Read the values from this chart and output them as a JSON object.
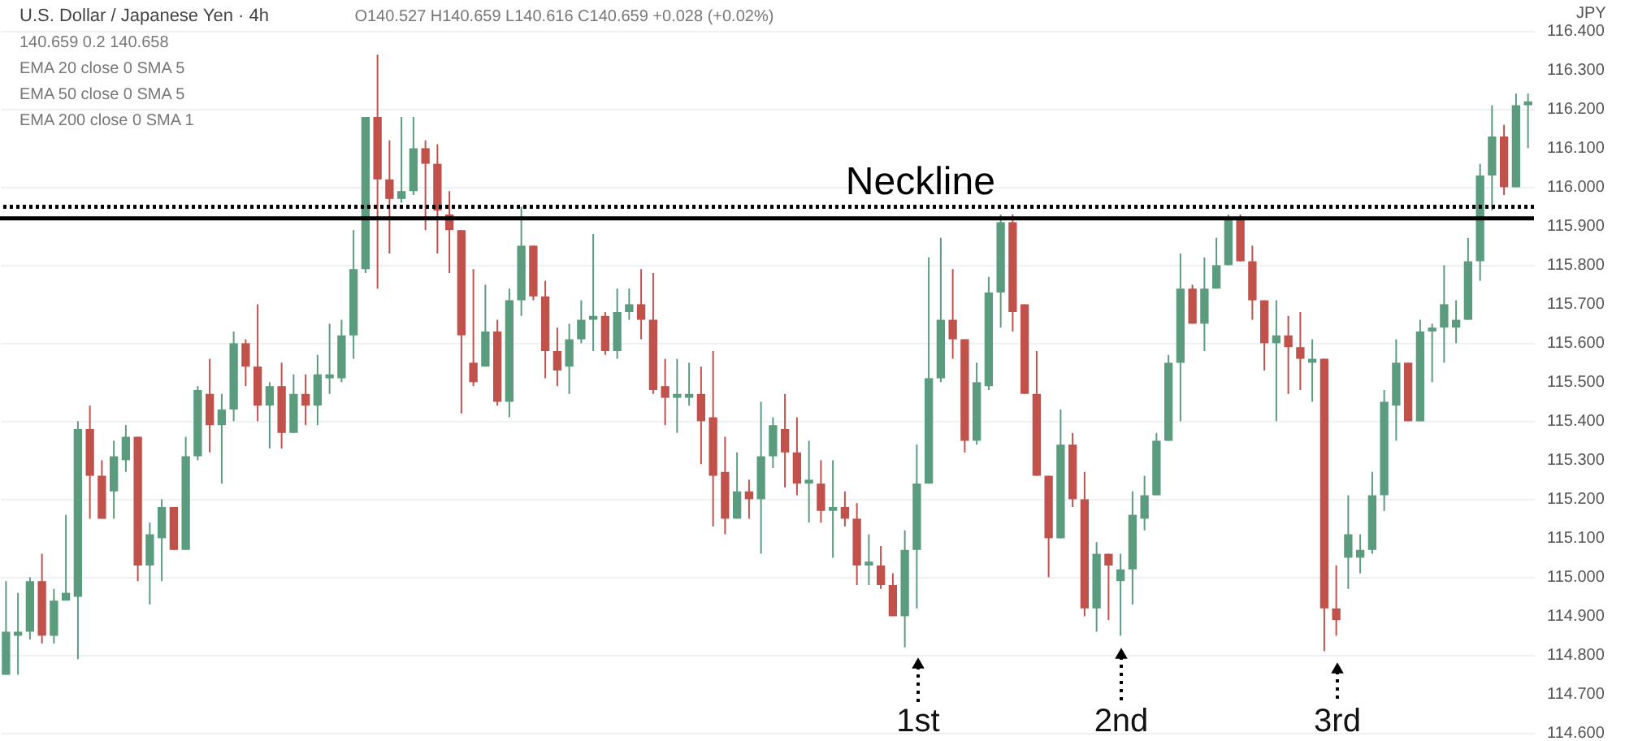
{
  "chart_data": {
    "type": "candlestick",
    "title": "U.S. Dollar / Japanese Yen · 4h",
    "ylabel": "JPY",
    "annotations": [
      "O140.527 H140.659 L140.616 C140.659 +0.028 (+0.02%)",
      "140.659  0.2  140.658",
      "EMA 20 close 0 SMA 5",
      "EMA 50 close 0 SMA 5",
      "EMA 200 close 0 SMA 1",
      "1st",
      "2nd",
      "3rd"
    ],
    "categories": [
      null,
      null,
      null,
      null,
      null,
      null,
      null,
      null,
      null,
      null,
      null,
      null,
      null,
      null,
      null,
      null,
      null,
      null,
      null,
      null,
      null,
      null,
      null,
      null,
      null,
      null,
      null,
      null,
      null,
      null,
      null,
      null,
      null,
      null,
      null,
      null,
      null,
      null,
      null,
      null,
      null,
      null,
      null,
      null,
      null,
      null,
      null,
      null,
      null,
      null,
      null,
      null,
      null,
      null,
      null,
      null,
      null,
      null,
      null,
      null,
      null,
      null,
      null,
      null,
      null,
      null,
      null,
      null,
      null,
      null,
      null,
      null,
      null,
      null,
      null,
      null,
      null,
      null,
      null,
      null,
      null,
      null,
      null,
      null,
      null,
      null,
      null,
      null,
      null,
      null,
      null,
      null,
      null,
      null,
      null,
      null,
      null,
      null,
      null,
      null,
      null,
      null,
      null,
      null,
      null,
      null,
      null,
      null,
      null,
      null,
      null,
      null,
      null,
      null,
      null,
      null,
      null,
      null,
      null,
      null,
      null,
      null,
      null,
      null,
      null,
      null,
      null,
      null
    ],
    "ohlc": [
      [
        114.75,
        114.99,
        114.75,
        114.86
      ],
      [
        114.85,
        114.96,
        114.75,
        114.86
      ],
      [
        114.86,
        115.0,
        114.84,
        114.99
      ],
      [
        114.99,
        115.06,
        114.83,
        114.85
      ],
      [
        114.85,
        114.97,
        114.83,
        114.94
      ],
      [
        114.94,
        115.16,
        114.94,
        114.96
      ],
      [
        114.95,
        115.4,
        114.79,
        115.38
      ],
      [
        115.38,
        115.44,
        115.15,
        115.26
      ],
      [
        115.26,
        115.3,
        115.15,
        115.15
      ],
      [
        115.22,
        115.35,
        115.15,
        115.31
      ],
      [
        115.3,
        115.39,
        115.27,
        115.36
      ],
      [
        115.36,
        115.36,
        114.99,
        115.03
      ],
      [
        115.03,
        115.14,
        114.93,
        115.11
      ],
      [
        115.1,
        115.2,
        114.99,
        115.18
      ],
      [
        115.18,
        115.18,
        115.07,
        115.07
      ],
      [
        115.07,
        115.36,
        115.07,
        115.31
      ],
      [
        115.31,
        115.49,
        115.3,
        115.48
      ],
      [
        115.47,
        115.56,
        115.32,
        115.39
      ],
      [
        115.39,
        115.47,
        115.24,
        115.43
      ],
      [
        115.43,
        115.63,
        115.4,
        115.6
      ],
      [
        115.6,
        115.61,
        115.49,
        115.54
      ],
      [
        115.54,
        115.7,
        115.4,
        115.44
      ],
      [
        115.44,
        115.5,
        115.33,
        115.49
      ],
      [
        115.49,
        115.55,
        115.33,
        115.37
      ],
      [
        115.37,
        115.52,
        115.37,
        115.47
      ],
      [
        115.47,
        115.52,
        115.39,
        115.44
      ],
      [
        115.44,
        115.57,
        115.39,
        115.52
      ],
      [
        115.51,
        115.65,
        115.47,
        115.52
      ],
      [
        115.51,
        115.66,
        115.5,
        115.62
      ],
      [
        115.62,
        115.89,
        115.56,
        115.79
      ],
      [
        115.79,
        116.18,
        115.78,
        116.18
      ],
      [
        116.18,
        116.34,
        115.74,
        116.02
      ],
      [
        116.02,
        116.12,
        115.83,
        115.97
      ],
      [
        115.97,
        116.18,
        115.96,
        115.99
      ],
      [
        115.99,
        116.18,
        115.98,
        116.1
      ],
      [
        116.1,
        116.12,
        115.89,
        116.06
      ],
      [
        116.06,
        116.11,
        115.83,
        115.94
      ],
      [
        115.93,
        115.99,
        115.78,
        115.89
      ],
      [
        115.89,
        115.89,
        115.42,
        115.62
      ],
      [
        115.55,
        115.79,
        115.49,
        115.5
      ],
      [
        115.54,
        115.75,
        115.54,
        115.63
      ],
      [
        115.63,
        115.66,
        115.44,
        115.45
      ],
      [
        115.45,
        115.74,
        115.41,
        115.71
      ],
      [
        115.71,
        115.95,
        115.67,
        115.85
      ],
      [
        115.85,
        115.85,
        115.71,
        115.72
      ],
      [
        115.72,
        115.76,
        115.51,
        115.58
      ],
      [
        115.58,
        115.64,
        115.49,
        115.53
      ],
      [
        115.54,
        115.65,
        115.47,
        115.61
      ],
      [
        115.61,
        115.71,
        115.6,
        115.66
      ],
      [
        115.66,
        115.88,
        115.58,
        115.67
      ],
      [
        115.67,
        115.68,
        115.57,
        115.58
      ],
      [
        115.58,
        115.74,
        115.56,
        115.68
      ],
      [
        115.68,
        115.74,
        115.66,
        115.7
      ],
      [
        115.7,
        115.79,
        115.61,
        115.66
      ],
      [
        115.66,
        115.78,
        115.47,
        115.48
      ],
      [
        115.49,
        115.56,
        115.39,
        115.46
      ],
      [
        115.46,
        115.56,
        115.37,
        115.47
      ],
      [
        115.46,
        115.55,
        115.44,
        115.47
      ],
      [
        115.47,
        115.54,
        115.29,
        115.4
      ],
      [
        115.41,
        115.58,
        115.13,
        115.26
      ],
      [
        115.27,
        115.36,
        115.11,
        115.15
      ],
      [
        115.15,
        115.32,
        115.15,
        115.22
      ],
      [
        115.22,
        115.25,
        115.15,
        115.2
      ],
      [
        115.2,
        115.45,
        115.06,
        115.31
      ],
      [
        115.31,
        115.41,
        115.28,
        115.39
      ],
      [
        115.38,
        115.47,
        115.23,
        115.32
      ],
      [
        115.32,
        115.41,
        115.21,
        115.24
      ],
      [
        115.24,
        115.35,
        115.14,
        115.25
      ],
      [
        115.24,
        115.3,
        115.14,
        115.17
      ],
      [
        115.17,
        115.3,
        115.05,
        115.18
      ],
      [
        115.18,
        115.22,
        115.13,
        115.15
      ],
      [
        115.15,
        115.19,
        114.98,
        115.03
      ],
      [
        115.03,
        115.11,
        114.98,
        115.04
      ],
      [
        115.03,
        115.08,
        114.97,
        114.98
      ],
      [
        114.98,
        115.01,
        114.9,
        114.9
      ],
      [
        114.9,
        115.12,
        114.82,
        115.07
      ],
      [
        115.07,
        115.34,
        114.92,
        115.24
      ],
      [
        115.24,
        115.82,
        115.24,
        115.51
      ],
      [
        115.51,
        115.87,
        115.5,
        115.66
      ],
      [
        115.66,
        115.79,
        115.56,
        115.61
      ],
      [
        115.61,
        115.61,
        115.32,
        115.35
      ],
      [
        115.35,
        115.55,
        115.34,
        115.5
      ],
      [
        115.49,
        115.77,
        115.48,
        115.73
      ],
      [
        115.73,
        115.93,
        115.64,
        115.91
      ],
      [
        115.91,
        115.93,
        115.63,
        115.68
      ],
      [
        115.7,
        115.7,
        115.47,
        115.47
      ],
      [
        115.47,
        115.58,
        115.26,
        115.26
      ],
      [
        115.26,
        115.26,
        115.0,
        115.1
      ],
      [
        115.1,
        115.43,
        115.1,
        115.34
      ],
      [
        115.34,
        115.37,
        115.18,
        115.2
      ],
      [
        115.2,
        115.27,
        114.9,
        114.92
      ],
      [
        114.92,
        115.09,
        114.86,
        115.06
      ],
      [
        115.06,
        115.06,
        114.89,
        115.03
      ],
      [
        114.99,
        115.06,
        114.85,
        115.02
      ],
      [
        115.02,
        115.22,
        114.93,
        115.16
      ],
      [
        115.15,
        115.26,
        115.12,
        115.21
      ],
      [
        115.21,
        115.37,
        115.21,
        115.35
      ],
      [
        115.35,
        115.57,
        115.35,
        115.55
      ],
      [
        115.55,
        115.83,
        115.4,
        115.74
      ],
      [
        115.74,
        115.75,
        115.65,
        115.65
      ],
      [
        115.65,
        115.82,
        115.58,
        115.74
      ],
      [
        115.74,
        115.87,
        115.74,
        115.8
      ],
      [
        115.8,
        115.93,
        115.8,
        115.92
      ],
      [
        115.92,
        115.93,
        115.81,
        115.81
      ],
      [
        115.81,
        115.85,
        115.66,
        115.71
      ],
      [
        115.71,
        115.71,
        115.53,
        115.6
      ],
      [
        115.6,
        115.71,
        115.4,
        115.62
      ],
      [
        115.62,
        115.67,
        115.47,
        115.59
      ],
      [
        115.59,
        115.68,
        115.48,
        115.56
      ],
      [
        115.55,
        115.61,
        115.45,
        115.56
      ],
      [
        115.56,
        115.56,
        114.81,
        114.92
      ],
      [
        114.92,
        115.03,
        114.85,
        114.89
      ],
      [
        115.05,
        115.21,
        114.97,
        115.11
      ],
      [
        115.05,
        115.11,
        115.01,
        115.07
      ],
      [
        115.07,
        115.27,
        115.06,
        115.21
      ],
      [
        115.21,
        115.48,
        115.17,
        115.45
      ],
      [
        115.44,
        115.61,
        115.35,
        115.55
      ],
      [
        115.55,
        115.55,
        115.4,
        115.4
      ],
      [
        115.4,
        115.66,
        115.4,
        115.63
      ],
      [
        115.63,
        115.65,
        115.5,
        115.64
      ],
      [
        115.64,
        115.8,
        115.55,
        115.7
      ],
      [
        115.64,
        115.71,
        115.6,
        115.66
      ],
      [
        115.66,
        115.87,
        115.66,
        115.81
      ],
      [
        115.81,
        116.06,
        115.76,
        116.03
      ],
      [
        116.03,
        116.21,
        115.94,
        116.13
      ],
      [
        116.13,
        116.16,
        115.98,
        116.0
      ],
      [
        116.0,
        116.24,
        116.0,
        116.21
      ],
      [
        116.21,
        116.24,
        116.1,
        116.22
      ]
    ],
    "colors": [
      "#5b9c7f",
      "#5b9c7f",
      "#5b9c7f",
      "#c0524b",
      "#5b9c7f",
      "#5b9c7f",
      "#5b9c7f",
      "#c0524b",
      "#c0524b",
      "#5b9c7f",
      "#5b9c7f",
      "#c0524b",
      "#5b9c7f",
      "#5b9c7f",
      "#c0524b",
      "#5b9c7f",
      "#5b9c7f",
      "#c0524b",
      "#5b9c7f",
      "#5b9c7f",
      "#c0524b",
      "#c0524b",
      "#5b9c7f",
      "#c0524b",
      "#5b9c7f",
      "#c0524b",
      "#5b9c7f",
      "#5b9c7f",
      "#5b9c7f",
      "#5b9c7f",
      "#5b9c7f",
      "#c0524b",
      "#c0524b",
      "#5b9c7f",
      "#5b9c7f",
      "#c0524b",
      "#c0524b",
      "#c0524b",
      "#c0524b",
      "#c0524b",
      "#5b9c7f",
      "#c0524b",
      "#5b9c7f",
      "#5b9c7f",
      "#c0524b",
      "#c0524b",
      "#c0524b",
      "#5b9c7f",
      "#5b9c7f",
      "#5b9c7f",
      "#c0524b",
      "#5b9c7f",
      "#5b9c7f",
      "#c0524b",
      "#c0524b",
      "#c0524b",
      "#5b9c7f",
      "#5b9c7f",
      "#c0524b",
      "#c0524b",
      "#c0524b",
      "#5b9c7f",
      "#c0524b",
      "#5b9c7f",
      "#5b9c7f",
      "#c0524b",
      "#c0524b",
      "#5b9c7f",
      "#c0524b",
      "#5b9c7f",
      "#c0524b",
      "#c0524b",
      "#5b9c7f",
      "#c0524b",
      "#c0524b",
      "#5b9c7f",
      "#5b9c7f",
      "#5b9c7f",
      "#5b9c7f",
      "#c0524b",
      "#c0524b",
      "#5b9c7f",
      "#5b9c7f",
      "#5b9c7f",
      "#c0524b",
      "#c0524b",
      "#c0524b",
      "#c0524b",
      "#5b9c7f",
      "#c0524b",
      "#c0524b",
      "#5b9c7f",
      "#c0524b",
      "#5b9c7f",
      "#5b9c7f",
      "#5b9c7f",
      "#5b9c7f",
      "#5b9c7f",
      "#5b9c7f",
      "#c0524b",
      "#5b9c7f",
      "#5b9c7f",
      "#5b9c7f",
      "#c0524b",
      "#c0524b",
      "#c0524b",
      "#5b9c7f",
      "#c0524b",
      "#c0524b",
      "#5b9c7f",
      "#c0524b",
      "#c0524b",
      "#5b9c7f",
      "#5b9c7f",
      "#5b9c7f",
      "#5b9c7f",
      "#5b9c7f",
      "#c0524b",
      "#5b9c7f",
      "#5b9c7f",
      "#5b9c7f",
      "#5b9c7f",
      "#5b9c7f",
      "#5b9c7f",
      "#5b9c7f",
      "#c0524b",
      "#5b9c7f",
      "#5b9c7f"
    ],
    "ylim": [
      114.58,
      116.48
    ],
    "yticks": [
      {
        "value": 114.6,
        "label": "114.600"
      },
      {
        "value": 114.7,
        "label": "114.700"
      },
      {
        "value": 114.8,
        "label": "114.800"
      },
      {
        "value": 114.9,
        "label": "114.900"
      },
      {
        "value": 115.0,
        "label": "115.000"
      },
      {
        "value": 115.1,
        "label": "115.100"
      },
      {
        "value": 115.2,
        "label": "115.200"
      },
      {
        "value": 115.3,
        "label": "115.300"
      },
      {
        "value": 115.4,
        "label": "115.400"
      },
      {
        "value": 115.5,
        "label": "115.500"
      },
      {
        "value": 115.6,
        "label": "115.600"
      },
      {
        "value": 115.7,
        "label": "115.700"
      },
      {
        "value": 115.8,
        "label": "115.800"
      },
      {
        "value": 115.9,
        "label": "115.900"
      },
      {
        "value": 116.0,
        "label": "116.000"
      },
      {
        "value": 116.1,
        "label": "116.100"
      },
      {
        "value": 116.2,
        "label": "116.200"
      },
      {
        "value": 116.3,
        "label": "116.300"
      },
      {
        "value": 116.4,
        "label": "116.400"
      }
    ],
    "ref_lines": [
      {
        "axis": "y",
        "value": 115.92,
        "label": "Neckline",
        "color": "#000000"
      },
      {
        "axis": "y",
        "value": 115.95,
        "color": "#000000",
        "line_style": "dotted"
      }
    ],
    "grid": "y"
  }
}
